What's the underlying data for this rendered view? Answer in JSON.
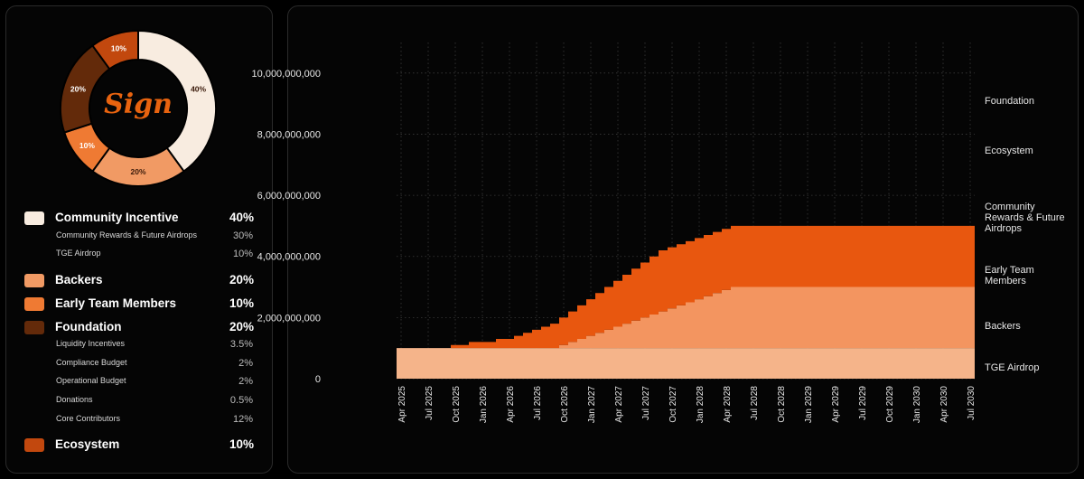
{
  "logo_text": "Sign",
  "donut": {
    "slices": [
      {
        "label": "40%",
        "value": 40,
        "color": "#f8ece0"
      },
      {
        "label": "20%",
        "value": 20,
        "color": "#f19a64"
      },
      {
        "label": "10%",
        "value": 10,
        "color": "#ef7a33"
      },
      {
        "label": "20%",
        "value": 20,
        "color": "#632a0a"
      },
      {
        "label": "10%",
        "value": 10,
        "color": "#c2480e"
      }
    ]
  },
  "legend": {
    "groups": [
      {
        "label": "Community Incentive",
        "pct": "40%",
        "color": "#f8ece0",
        "subs": [
          {
            "label": "Community Rewards & Future Airdrops",
            "pct": "30%"
          },
          {
            "label": "TGE Airdrop",
            "pct": "10%"
          }
        ]
      },
      {
        "label": "Backers",
        "pct": "20%",
        "color": "#f19a64",
        "subs": []
      },
      {
        "label": "Early Team Members",
        "pct": "10%",
        "color": "#ef7a33",
        "subs": []
      },
      {
        "label": "Foundation",
        "pct": "20%",
        "color": "#632a0a",
        "subs": [
          {
            "label": "Liquidity Incentives",
            "pct": "3.5%"
          },
          {
            "label": "Compliance Budget",
            "pct": "2%"
          },
          {
            "label": "Operational Budget",
            "pct": "2%"
          },
          {
            "label": "Donations",
            "pct": "0.5%"
          },
          {
            "label": "Core Contributors",
            "pct": "12%"
          }
        ]
      },
      {
        "label": "Ecosystem",
        "pct": "10%",
        "color": "#c2480e",
        "subs": []
      }
    ]
  },
  "chart_data": {
    "type": "area",
    "stacked": true,
    "stepped": true,
    "x": [
      "Apr 2025",
      "May 2025",
      "Jun 2025",
      "Jul 2025",
      "Aug 2025",
      "Sep 2025",
      "Oct 2025",
      "Nov 2025",
      "Dec 2025",
      "Jan 2026",
      "Feb 2026",
      "Mar 2026",
      "Apr 2026",
      "May 2026",
      "Jun 2026",
      "Jul 2026",
      "Aug 2026",
      "Sep 2026",
      "Oct 2026",
      "Nov 2026",
      "Dec 2026",
      "Jan 2027",
      "Feb 2027",
      "Mar 2027",
      "Apr 2027",
      "May 2027",
      "Jun 2027",
      "Jul 2027",
      "Aug 2027",
      "Sep 2027",
      "Oct 2027",
      "Nov 2027",
      "Dec 2027",
      "Jan 2028",
      "Feb 2028",
      "Mar 2028",
      "Apr 2028",
      "May 2028",
      "Jun 2028",
      "Jul 2028",
      "Aug 2028",
      "Sep 2028",
      "Oct 2028",
      "Nov 2028",
      "Dec 2028",
      "Jan 2029",
      "Feb 2029",
      "Mar 2029",
      "Apr 2029",
      "May 2029",
      "Jun 2029",
      "Jul 2029",
      "Aug 2029",
      "Sep 2029",
      "Oct 2029",
      "Nov 2029",
      "Dec 2029",
      "Jan 2030",
      "Feb 2030",
      "Mar 2030",
      "Apr 2030",
      "May 2030",
      "Jun 2030",
      "Jul 2030"
    ],
    "x_tick_labels": [
      "Apr 2025",
      "Jul 2025",
      "Oct 2025",
      "Jan 2026",
      "Apr 2026",
      "Jul 2026",
      "Oct 2026",
      "Jan 2027",
      "Apr 2027",
      "Jul 2027",
      "Oct 2027",
      "Jan 2028",
      "Apr 2028",
      "Jul 2028",
      "Oct 2028",
      "Jan 2029",
      "Apr 2029",
      "Jul 2029",
      "Oct 2029",
      "Jan 2030",
      "Apr 2030",
      "Jul 2030"
    ],
    "y_ticks": [
      0,
      2000000000,
      4000000000,
      6000000000,
      8000000000,
      10000000000
    ],
    "y_tick_labels": [
      "0",
      "2,000,000,000",
      "4,000,000,000",
      "6,000,000,000",
      "8,000,000,000",
      "10,000,000,000"
    ],
    "ylim": [
      0,
      11000000000
    ],
    "grid": true,
    "series": [
      {
        "name": "TGE Airdrop",
        "color": "#f5b48a",
        "values": [
          1000000000,
          1000000000,
          1000000000,
          1000000000,
          1000000000,
          1000000000,
          1000000000,
          1000000000,
          1000000000,
          1000000000,
          1000000000,
          1000000000,
          1000000000,
          1000000000,
          1000000000,
          1000000000,
          1000000000,
          1000000000,
          1000000000,
          1000000000,
          1000000000,
          1000000000,
          1000000000,
          1000000000,
          1000000000,
          1000000000,
          1000000000,
          1000000000,
          1000000000,
          1000000000,
          1000000000,
          1000000000,
          1000000000,
          1000000000,
          1000000000,
          1000000000,
          1000000000,
          1000000000,
          1000000000,
          1000000000,
          1000000000,
          1000000000,
          1000000000,
          1000000000,
          1000000000,
          1000000000,
          1000000000,
          1000000000,
          1000000000,
          1000000000,
          1000000000,
          1000000000,
          1000000000,
          1000000000,
          1000000000,
          1000000000,
          1000000000,
          1000000000,
          1000000000,
          1000000000,
          1000000000,
          1000000000,
          1000000000,
          1000000000
        ]
      },
      {
        "name": "Backers",
        "color": "#f39560",
        "values": [
          0,
          0,
          0,
          0,
          0,
          0,
          0,
          0,
          0,
          0,
          0,
          0,
          0,
          0,
          0,
          0,
          0,
          0,
          100000000,
          200000000,
          300000000,
          400000000,
          500000000,
          600000000,
          700000000,
          800000000,
          900000000,
          1000000000,
          1100000000,
          1200000000,
          1300000000,
          1400000000,
          1500000000,
          1600000000,
          1700000000,
          1800000000,
          1900000000,
          2000000000,
          2000000000,
          2000000000,
          2000000000,
          2000000000,
          2000000000,
          2000000000,
          2000000000,
          2000000000,
          2000000000,
          2000000000,
          2000000000,
          2000000000,
          2000000000,
          2000000000,
          2000000000,
          2000000000,
          2000000000,
          2000000000,
          2000000000,
          2000000000,
          2000000000,
          2000000000,
          2000000000,
          2000000000,
          2000000000,
          2000000000
        ]
      },
      {
        "name": "Early Team Members",
        "color": "#ef7a33",
        "values": [
          0,
          0,
          0,
          0,
          0,
          0,
          0,
          0,
          0,
          0,
          0,
          0,
          0,
          0,
          0,
          0,
          0,
          0,
          0,
          0,
          0,
          0,
          0,
          0,
          0,
          0,
          0,
          0,
          0,
          0,
          0,
          0,
          0,
          0,
          0,
          0,
          0,
          0,
          0,
          0,
          0,
          0,
          0,
          0,
          0,
          0,
          0,
          0,
          0,
          0,
          0,
          0,
          0,
          0,
          0,
          0,
          0,
          0,
          0,
          0,
          0,
          0,
          0,
          0
        ]
      },
      {
        "name": "Community Rewards & Future Airdrops",
        "color": "#e8570f",
        "values": [
          0,
          0,
          0,
          0,
          0,
          0,
          100000000,
          100000000,
          200000000,
          200000000,
          200000000,
          300000000,
          300000000,
          400000000,
          500000000,
          600000000,
          700000000,
          800000000,
          900000000,
          1000000000,
          1100000000,
          1200000000,
          1300000000,
          1400000000,
          1500000000,
          1600000000,
          1700000000,
          1800000000,
          1900000000,
          2000000000,
          2000000000,
          2000000000,
          2000000000,
          2000000000,
          2000000000,
          2000000000,
          2000000000,
          2000000000,
          2000000000,
          2000000000,
          2000000000,
          2000000000,
          2000000000,
          2000000000,
          2000000000,
          2000000000,
          2000000000,
          2000000000,
          2000000000,
          2000000000,
          2000000000,
          2000000000,
          2000000000,
          2000000000,
          2000000000,
          2000000000,
          2000000000,
          2000000000,
          2000000000,
          2000000000,
          2000000000,
          2000000000,
          2000000000,
          2000000000
        ]
      },
      {
        "name": "Ecosystem",
        "color": "#b8420c",
        "values": [
          0,
          0,
          0,
          0,
          0,
          0,
          0,
          0,
          0,
          0,
          0,
          0,
          0,
          0,
          0,
          0,
          0,
          0,
          0,
          0,
          0,
          0,
          0,
          0,
          0,
          0,
          0,
          0,
          0,
          0,
          0,
          0,
          0,
          0,
          0,
          0,
          0,
          0,
          0,
          0,
          0,
          0,
          0,
          0,
          0,
          0,
          0,
          0,
          0,
          0,
          0,
          0,
          0,
          0,
          0,
          0,
          0,
          0,
          0,
          0,
          0,
          0,
          0,
          0
        ]
      },
      {
        "name": "Foundation",
        "color": "#5e2609",
        "values": [
          0,
          0,
          0,
          0,
          0,
          0,
          0,
          0,
          0,
          0,
          0,
          0,
          0,
          0,
          0,
          0,
          0,
          0,
          0,
          0,
          0,
          0,
          0,
          0,
          0,
          0,
          0,
          0,
          0,
          0,
          0,
          0,
          0,
          0,
          0,
          0,
          0,
          0,
          0,
          0,
          0,
          0,
          0,
          0,
          0,
          0,
          0,
          0,
          0,
          0,
          0,
          0,
          0,
          0,
          0,
          0,
          0,
          0,
          0,
          0,
          0,
          0,
          0,
          0
        ]
      }
    ],
    "series_labels": [
      "Foundation",
      "Ecosystem",
      "Community Rewards & Future Airdrops",
      "Early Team Members",
      "Backers",
      "TGE Airdrop"
    ]
  }
}
